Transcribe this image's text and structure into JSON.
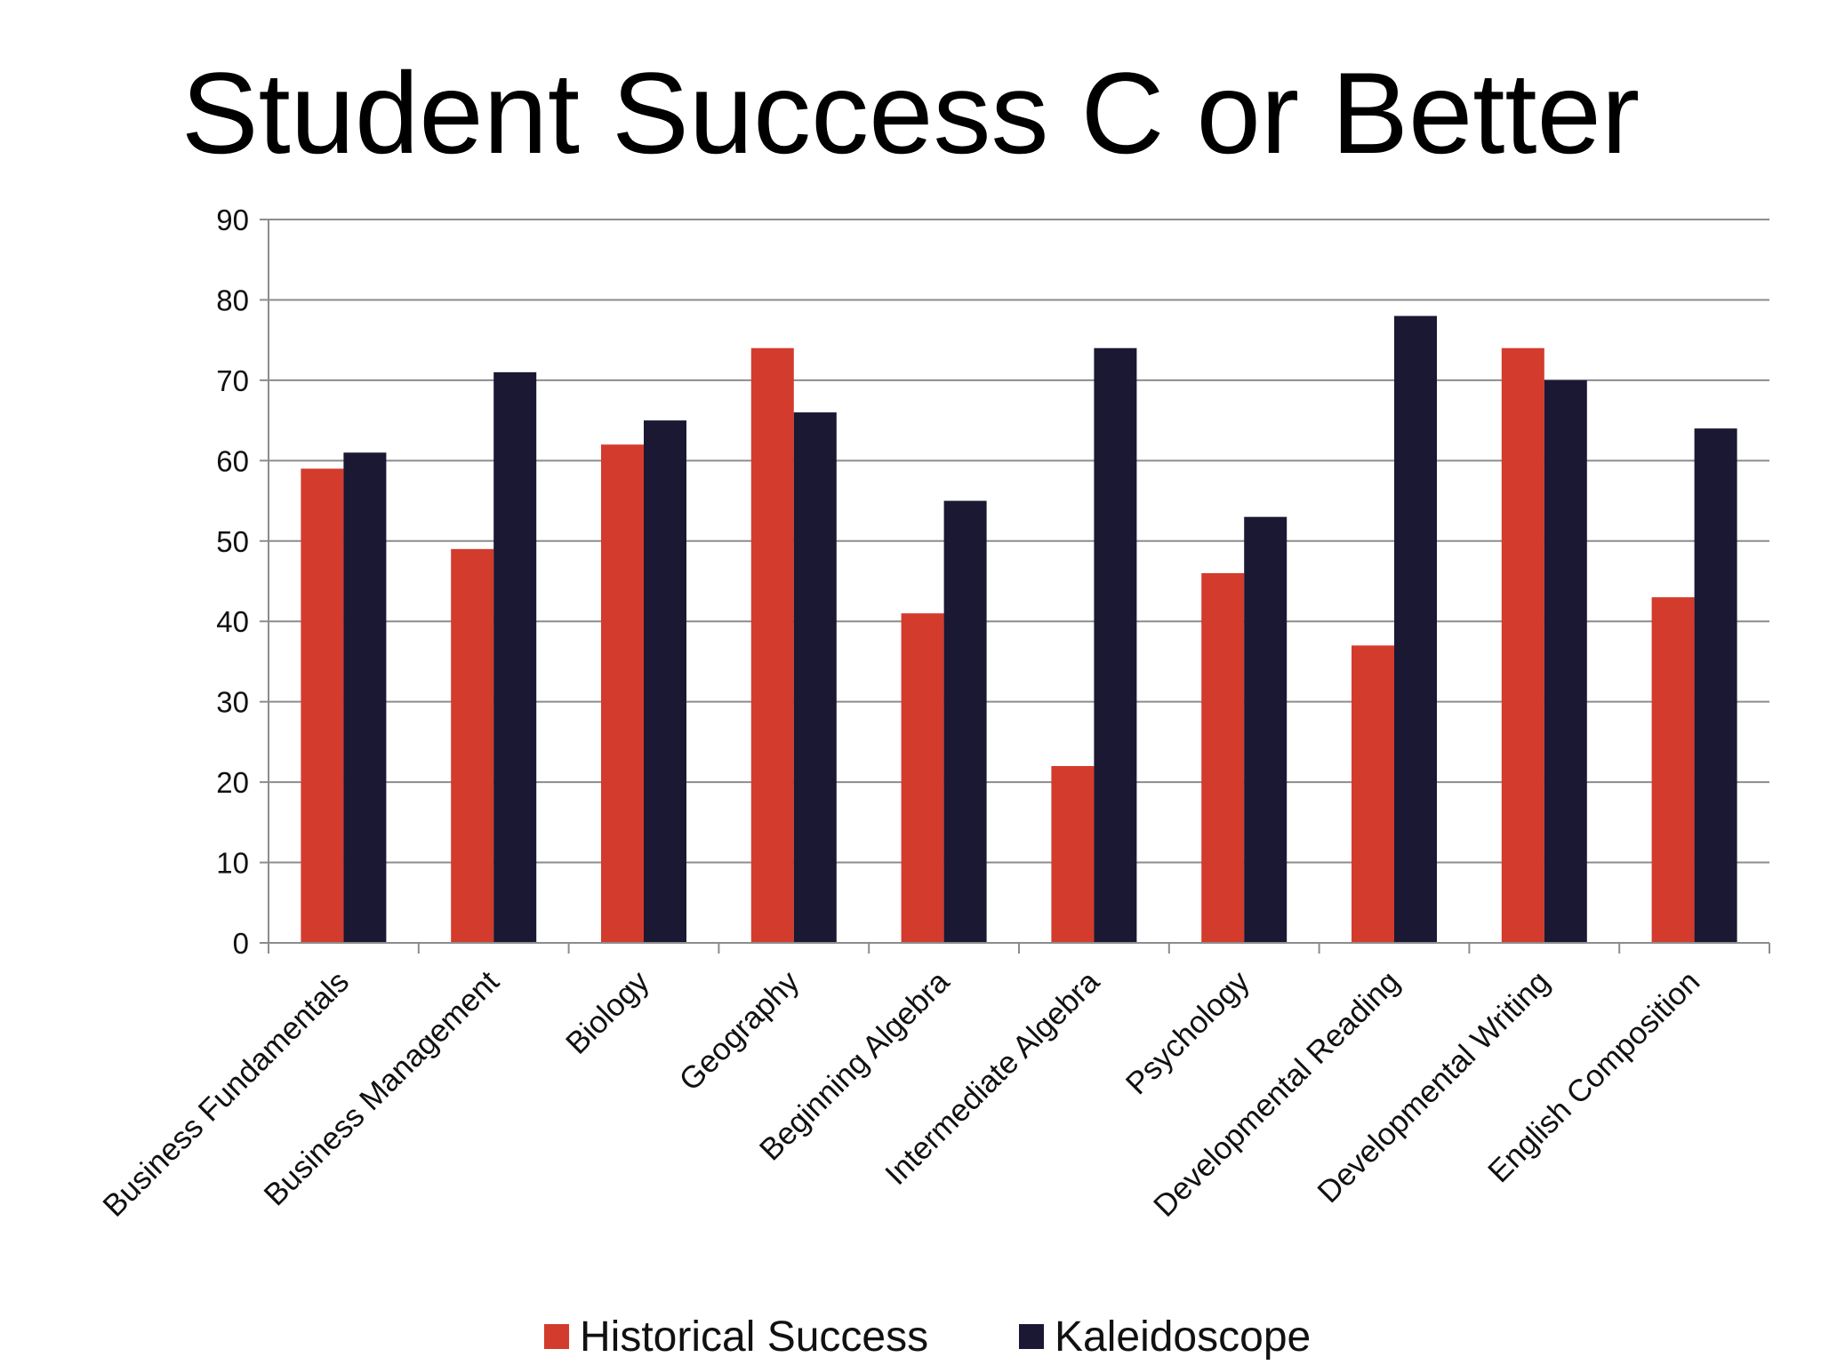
{
  "chart_data": {
    "type": "bar",
    "title": "Student Success C or Better",
    "categories": [
      "Business Fundamentals",
      "Business Management",
      "Biology",
      "Geography",
      "Beginning Algebra",
      "Intermediate Algebra",
      "Psychology",
      "Developmental Reading",
      "Developmental Writing",
      "English Composition"
    ],
    "series": [
      {
        "name": "Historical Success",
        "color": "#d33b2c",
        "values": [
          59,
          49,
          62,
          74,
          41,
          22,
          46,
          37,
          74,
          43
        ]
      },
      {
        "name": "Kaleidoscope",
        "color": "#1a1833",
        "values": [
          61,
          71,
          65,
          66,
          55,
          74,
          53,
          78,
          70,
          64
        ]
      }
    ],
    "ylim": [
      0,
      90
    ],
    "yticks": [
      0,
      10,
      20,
      30,
      40,
      50,
      60,
      70,
      80,
      90
    ],
    "xlabel": "",
    "ylabel": "",
    "grid": true,
    "legend_position": "bottom"
  }
}
